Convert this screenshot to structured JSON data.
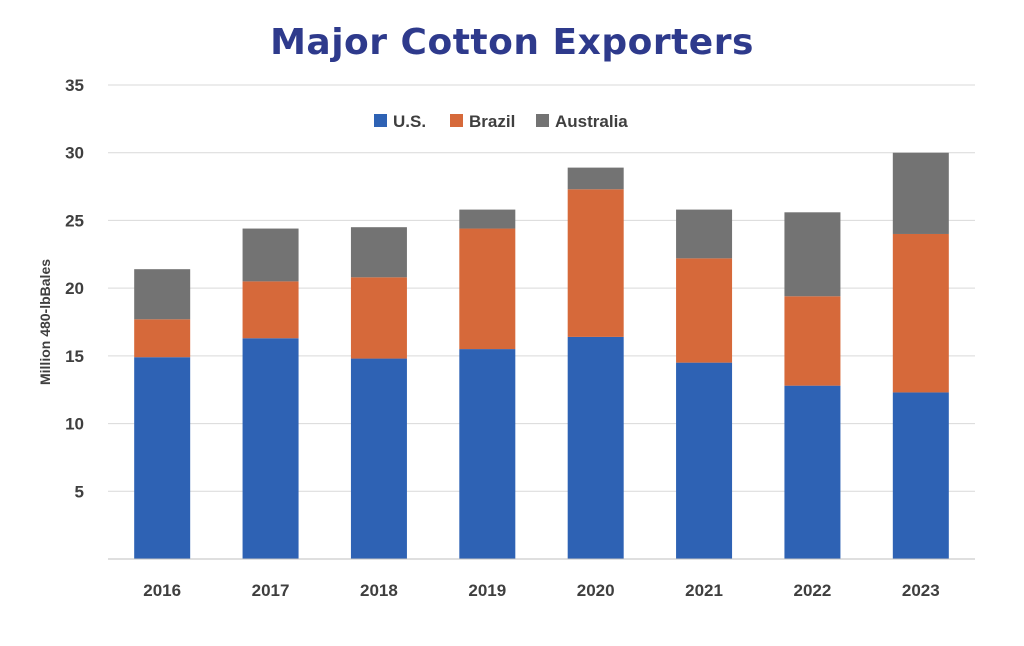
{
  "chart_data": {
    "type": "bar",
    "stacked": true,
    "title": "Major Cotton Exporters",
    "xlabel": "",
    "ylabel": "Million 480-lbBales",
    "ylim": [
      0,
      35
    ],
    "yticks": [
      5,
      10,
      15,
      20,
      25,
      30,
      35
    ],
    "grid": true,
    "legend_position": "top-center",
    "categories": [
      "2016",
      "2017",
      "2018",
      "2019",
      "2020",
      "2021",
      "2022",
      "2023"
    ],
    "series": [
      {
        "name": "U.S.",
        "color": "#2e62b4",
        "values": [
          14.9,
          16.3,
          14.8,
          15.5,
          16.4,
          14.5,
          12.8,
          12.3
        ]
      },
      {
        "name": "Brazil",
        "color": "#d6693a",
        "values": [
          2.8,
          4.2,
          6.0,
          8.9,
          10.9,
          7.7,
          6.6,
          11.7
        ]
      },
      {
        "name": "Australia",
        "color": "#737373",
        "values": [
          3.7,
          3.9,
          3.7,
          1.4,
          1.6,
          3.6,
          6.2,
          6.0
        ]
      }
    ]
  }
}
